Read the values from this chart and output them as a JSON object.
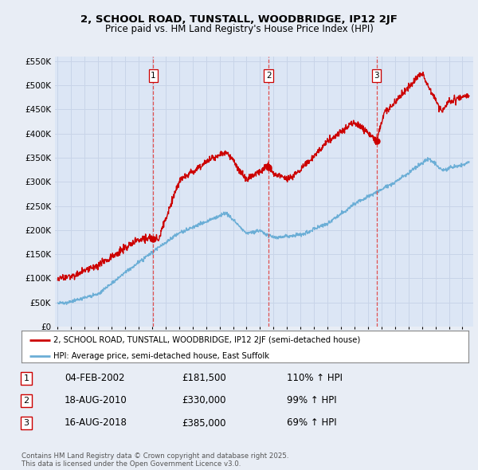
{
  "title1": "2, SCHOOL ROAD, TUNSTALL, WOODBRIDGE, IP12 2JF",
  "title2": "Price paid vs. HM Land Registry's House Price Index (HPI)",
  "bg_color": "#e8edf5",
  "plot_bg_color": "#dce6f5",
  "grid_color": "#c8d4e8",
  "red_color": "#cc0000",
  "blue_color": "#6baed6",
  "red_label": "2, SCHOOL ROAD, TUNSTALL, WOODBRIDGE, IP12 2JF (semi-detached house)",
  "blue_label": "HPI: Average price, semi-detached house, East Suffolk",
  "purchases": [
    {
      "num": "1",
      "date": "04-FEB-2002",
      "price": "£181,500",
      "pct": "110% ↑ HPI",
      "year": 2002.09,
      "price_val": 181500
    },
    {
      "num": "2",
      "date": "18-AUG-2010",
      "price": "£330,000",
      "pct": "99% ↑ HPI",
      "year": 2010.63,
      "price_val": 330000
    },
    {
      "num": "3",
      "date": "16-AUG-2018",
      "price": "£385,000",
      "pct": "69% ↑ HPI",
      "year": 2018.63,
      "price_val": 385000
    }
  ],
  "footer": "Contains HM Land Registry data © Crown copyright and database right 2025.\nThis data is licensed under the Open Government Licence v3.0.",
  "ylim": [
    0,
    560000
  ],
  "xlim": [
    1994.8,
    2025.8
  ]
}
